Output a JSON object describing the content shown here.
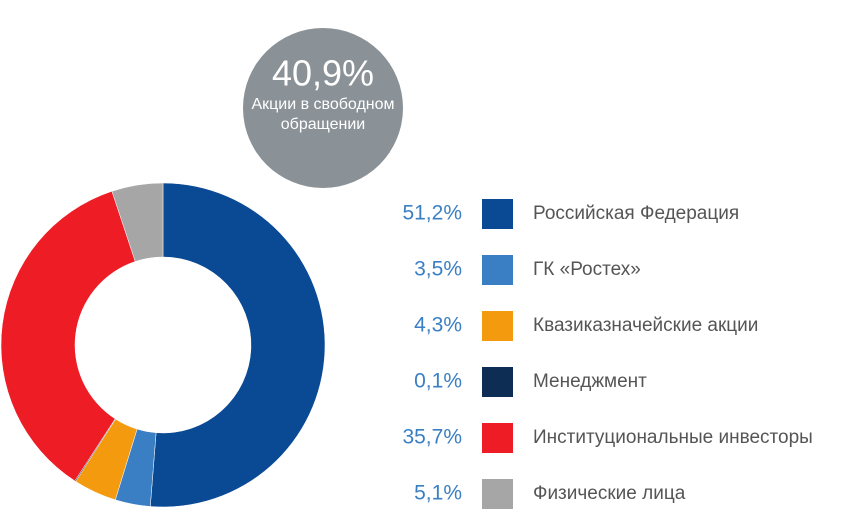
{
  "chart_data": {
    "type": "donut",
    "categories": [
      "Российская Федерация",
      "ГК «Ростех»",
      "Квазиказначейские акции",
      "Менеджмент",
      "Институциональные инвесторы",
      "Физические лица"
    ],
    "values": [
      51.2,
      3.5,
      4.3,
      0.1,
      35.7,
      5.1
    ],
    "value_labels": [
      "51,2%",
      "3,5%",
      "4,3%",
      "0,1%",
      "35,7%",
      "5,1%"
    ],
    "colors": [
      "#0a4a94",
      "#3a7fc4",
      "#f39a0f",
      "#0d2d55",
      "#ee1c25",
      "#a6a6a6"
    ],
    "callout": {
      "value": 40.9,
      "label": "40,9%",
      "text": "Акции в свободном обращении"
    }
  }
}
